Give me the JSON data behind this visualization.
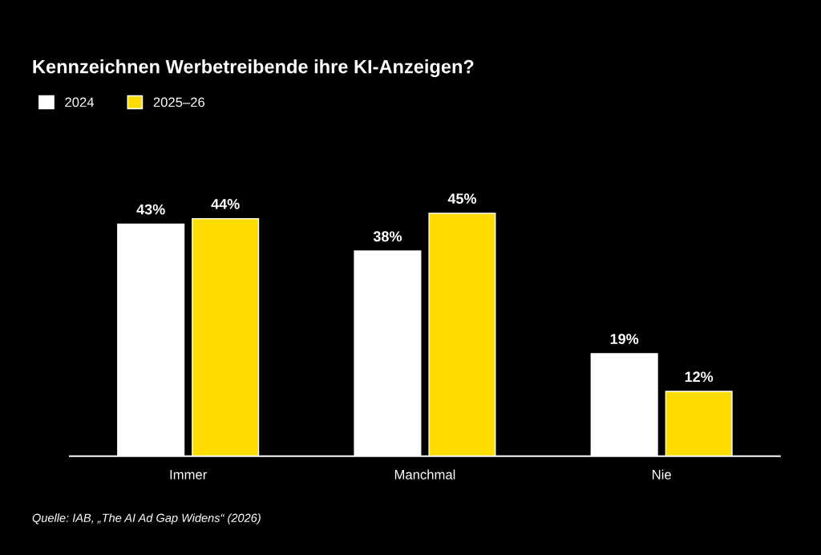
{
  "chart_data": {
    "type": "bar",
    "title": "Kennzeichnen Werbetreibende ihre KI-Anzeigen?",
    "categories": [
      "Immer",
      "Manchmal",
      "Nie"
    ],
    "series": [
      {
        "name": "2024",
        "color": "#ffffff",
        "values": [
          43,
          38,
          19
        ],
        "value_labels": [
          "43%",
          "38%",
          "19%"
        ]
      },
      {
        "name": "2025–26",
        "color": "#ffdc00",
        "values": [
          44,
          45,
          12
        ],
        "value_labels": [
          "44%",
          "45%",
          "12%"
        ]
      }
    ],
    "tick_labels": "x",
    "grid": false,
    "legend": "top left",
    "annotations": [
      "Quelle: IAB, „The AI Ad Gap Widens“ (2026)"
    ]
  }
}
